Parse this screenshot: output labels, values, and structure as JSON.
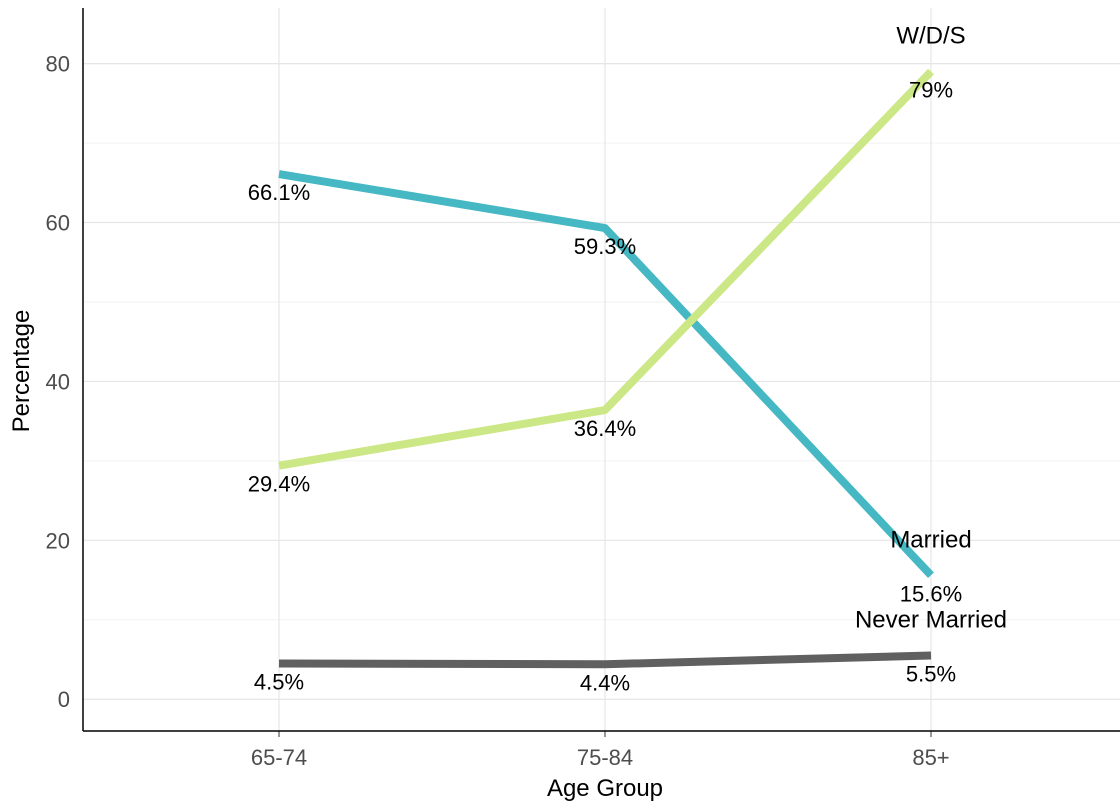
{
  "chart_data": {
    "type": "line",
    "categories": [
      "65-74",
      "75-84",
      "85+"
    ],
    "xlabel": "Age Group",
    "ylabel": "Percentage",
    "ylim": [
      -4,
      87
    ],
    "yticks": [
      "0",
      "20",
      "40",
      "60",
      "80"
    ],
    "grid": true,
    "series": [
      {
        "name": "Married",
        "color": "#45b8c4",
        "values": [
          66.1,
          59.3,
          15.6
        ],
        "labels": [
          "66.1%",
          "59.3%",
          "15.6%"
        ]
      },
      {
        "name": "W/D/S",
        "color": "#cce886",
        "values": [
          29.4,
          36.4,
          79
        ],
        "labels": [
          "29.4%",
          "36.4%",
          "79%"
        ]
      },
      {
        "name": "Never Married",
        "color": "#606060",
        "values": [
          4.5,
          4.4,
          5.5
        ],
        "labels": [
          "4.5%",
          "4.4%",
          "5.5%"
        ]
      }
    ]
  }
}
